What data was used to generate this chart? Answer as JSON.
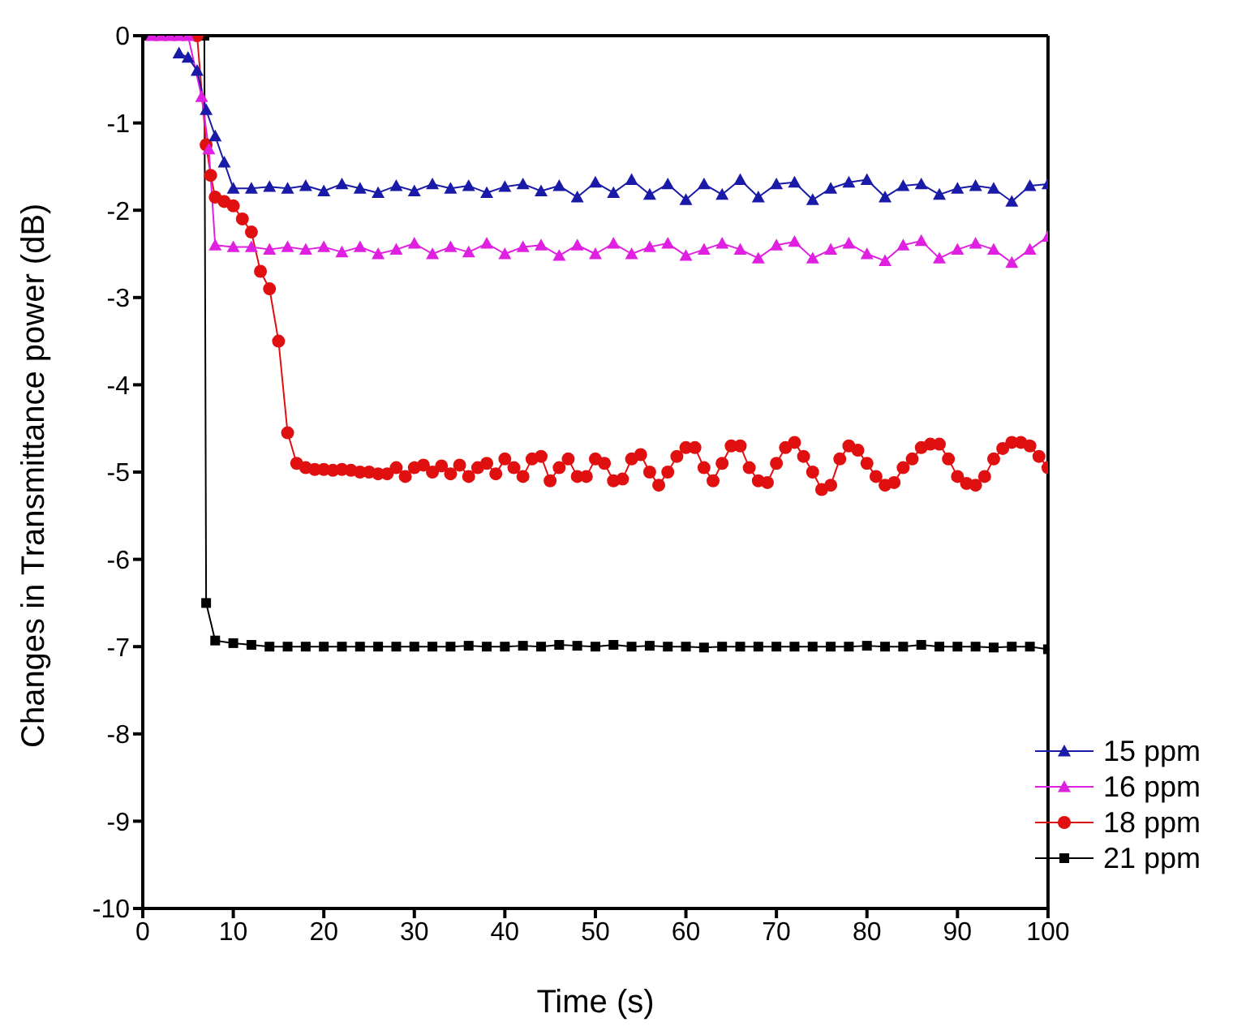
{
  "chart_data": {
    "type": "line",
    "xlabel": "Time (s)",
    "ylabel": "Changes in Transmittance power (dB)",
    "xlim": [
      0,
      100
    ],
    "xticks": [
      0,
      10,
      20,
      30,
      40,
      50,
      60,
      70,
      80,
      90,
      100
    ],
    "ylim": [
      -10,
      0
    ],
    "yticks": [
      -10,
      -9,
      -8,
      -7,
      -6,
      -5,
      -4,
      -3,
      -2,
      -1,
      0
    ],
    "legend": "bottom right",
    "grid": false,
    "series": [
      {
        "name": "15 ppm",
        "color": "#1a1aa8",
        "marker": "triangle",
        "x": [
          4,
          5,
          6,
          7,
          8,
          9,
          10,
          12,
          14,
          16,
          18,
          20,
          22,
          24,
          26,
          28,
          30,
          32,
          34,
          36,
          38,
          40,
          42,
          44,
          46,
          48,
          50,
          52,
          54,
          56,
          58,
          60,
          62,
          64,
          66,
          68,
          70,
          72,
          74,
          76,
          78,
          80,
          82,
          84,
          86,
          88,
          90,
          92,
          94,
          96,
          98,
          100
        ],
        "values": [
          -0.2,
          -0.25,
          -0.4,
          -0.85,
          -1.15,
          -1.45,
          -1.75,
          -1.75,
          -1.73,
          -1.75,
          -1.72,
          -1.78,
          -1.7,
          -1.75,
          -1.8,
          -1.72,
          -1.78,
          -1.7,
          -1.75,
          -1.72,
          -1.8,
          -1.73,
          -1.7,
          -1.78,
          -1.72,
          -1.85,
          -1.68,
          -1.8,
          -1.65,
          -1.82,
          -1.7,
          -1.88,
          -1.7,
          -1.82,
          -1.65,
          -1.85,
          -1.7,
          -1.68,
          -1.88,
          -1.75,
          -1.68,
          -1.65,
          -1.85,
          -1.72,
          -1.7,
          -1.82,
          -1.75,
          -1.72,
          -1.75,
          -1.9,
          -1.72,
          -1.7
        ]
      },
      {
        "name": "16 ppm",
        "color": "#e020e0",
        "marker": "triangle",
        "x": [
          1,
          2,
          3,
          4,
          5,
          6.5,
          7.3,
          8,
          10,
          12,
          14,
          16,
          18,
          20,
          22,
          24,
          26,
          28,
          30,
          32,
          34,
          36,
          38,
          40,
          42,
          44,
          46,
          48,
          50,
          52,
          54,
          56,
          58,
          60,
          62,
          64,
          66,
          68,
          70,
          72,
          74,
          76,
          78,
          80,
          82,
          84,
          86,
          88,
          90,
          92,
          94,
          96,
          98,
          100
        ],
        "values": [
          0,
          0,
          0,
          0,
          0,
          -0.7,
          -1.3,
          -2.4,
          -2.42,
          -2.42,
          -2.45,
          -2.42,
          -2.45,
          -2.42,
          -2.48,
          -2.42,
          -2.5,
          -2.45,
          -2.38,
          -2.5,
          -2.42,
          -2.48,
          -2.38,
          -2.5,
          -2.42,
          -2.4,
          -2.52,
          -2.4,
          -2.5,
          -2.38,
          -2.5,
          -2.42,
          -2.38,
          -2.52,
          -2.45,
          -2.38,
          -2.45,
          -2.55,
          -2.4,
          -2.36,
          -2.55,
          -2.45,
          -2.38,
          -2.5,
          -2.58,
          -2.4,
          -2.35,
          -2.55,
          -2.45,
          -2.38,
          -2.45,
          -2.6,
          -2.45,
          -2.3
        ]
      },
      {
        "name": "18 ppm",
        "color": "#e01010",
        "marker": "circle",
        "x": [
          6,
          7,
          7.5,
          8,
          9,
          10,
          11,
          12,
          13,
          14,
          15,
          16,
          17,
          18,
          19,
          20,
          21,
          22,
          23,
          24,
          25,
          26,
          27,
          28,
          29,
          30,
          31,
          32,
          33,
          34,
          35,
          36,
          37,
          38,
          39,
          40,
          41,
          42,
          43,
          44,
          45,
          46,
          47,
          48,
          49,
          50,
          51,
          52,
          53,
          54,
          55,
          56,
          57,
          58,
          59,
          60,
          61,
          62,
          63,
          64,
          65,
          66,
          67,
          68,
          69,
          70,
          71,
          72,
          73,
          74,
          75,
          76,
          77,
          78,
          79,
          80,
          81,
          82,
          83,
          84,
          85,
          86,
          87,
          88,
          89,
          90,
          91,
          92,
          93,
          94,
          95,
          96,
          97,
          98,
          99,
          100
        ],
        "values": [
          0,
          -1.25,
          -1.6,
          -1.85,
          -1.9,
          -1.95,
          -2.1,
          -2.25,
          -2.7,
          -2.9,
          -3.5,
          -4.55,
          -4.9,
          -4.95,
          -4.97,
          -4.97,
          -4.98,
          -4.97,
          -4.98,
          -5.0,
          -5.0,
          -5.02,
          -5.02,
          -4.95,
          -5.05,
          -4.95,
          -4.92,
          -5.0,
          -4.93,
          -5.02,
          -4.92,
          -5.05,
          -4.95,
          -4.9,
          -5.02,
          -4.85,
          -4.95,
          -5.05,
          -4.85,
          -4.82,
          -5.1,
          -4.95,
          -4.85,
          -5.05,
          -5.05,
          -4.85,
          -4.9,
          -5.1,
          -5.08,
          -4.85,
          -4.8,
          -5.0,
          -5.15,
          -5.0,
          -4.82,
          -4.72,
          -4.72,
          -4.95,
          -5.1,
          -4.9,
          -4.7,
          -4.7,
          -4.95,
          -5.1,
          -5.12,
          -4.9,
          -4.72,
          -4.66,
          -4.82,
          -5.0,
          -5.2,
          -5.15,
          -4.85,
          -4.7,
          -4.75,
          -4.9,
          -5.05,
          -5.15,
          -5.12,
          -4.95,
          -4.85,
          -4.72,
          -4.68,
          -4.68,
          -4.85,
          -5.05,
          -5.13,
          -5.15,
          -5.05,
          -4.85,
          -4.73,
          -4.66,
          -4.66,
          -4.7,
          -4.82,
          -4.95
        ]
      },
      {
        "name": "21 ppm",
        "color": "#000000",
        "marker": "square",
        "x": [
          0,
          6.8,
          7,
          8,
          10,
          12,
          14,
          16,
          18,
          20,
          22,
          24,
          26,
          28,
          30,
          32,
          34,
          36,
          38,
          40,
          42,
          44,
          46,
          48,
          50,
          52,
          54,
          56,
          58,
          60,
          62,
          64,
          66,
          68,
          70,
          72,
          74,
          76,
          78,
          80,
          82,
          84,
          86,
          88,
          90,
          92,
          94,
          96,
          98,
          100
        ],
        "values": [
          0,
          0,
          -6.5,
          -6.93,
          -6.96,
          -6.98,
          -7.0,
          -7.0,
          -7.0,
          -7.0,
          -7.0,
          -7.0,
          -7.0,
          -7.0,
          -7.0,
          -7.0,
          -7.0,
          -6.99,
          -7.0,
          -7.0,
          -6.99,
          -7.0,
          -6.98,
          -6.99,
          -7.0,
          -6.98,
          -7.0,
          -6.99,
          -7.0,
          -7.0,
          -7.01,
          -7.0,
          -7.0,
          -7.0,
          -7.0,
          -7.0,
          -7.0,
          -7.0,
          -7.0,
          -6.99,
          -7.0,
          -7.0,
          -6.98,
          -7.0,
          -7.0,
          -7.0,
          -7.01,
          -7.0,
          -7.0,
          -7.03
        ]
      }
    ]
  }
}
